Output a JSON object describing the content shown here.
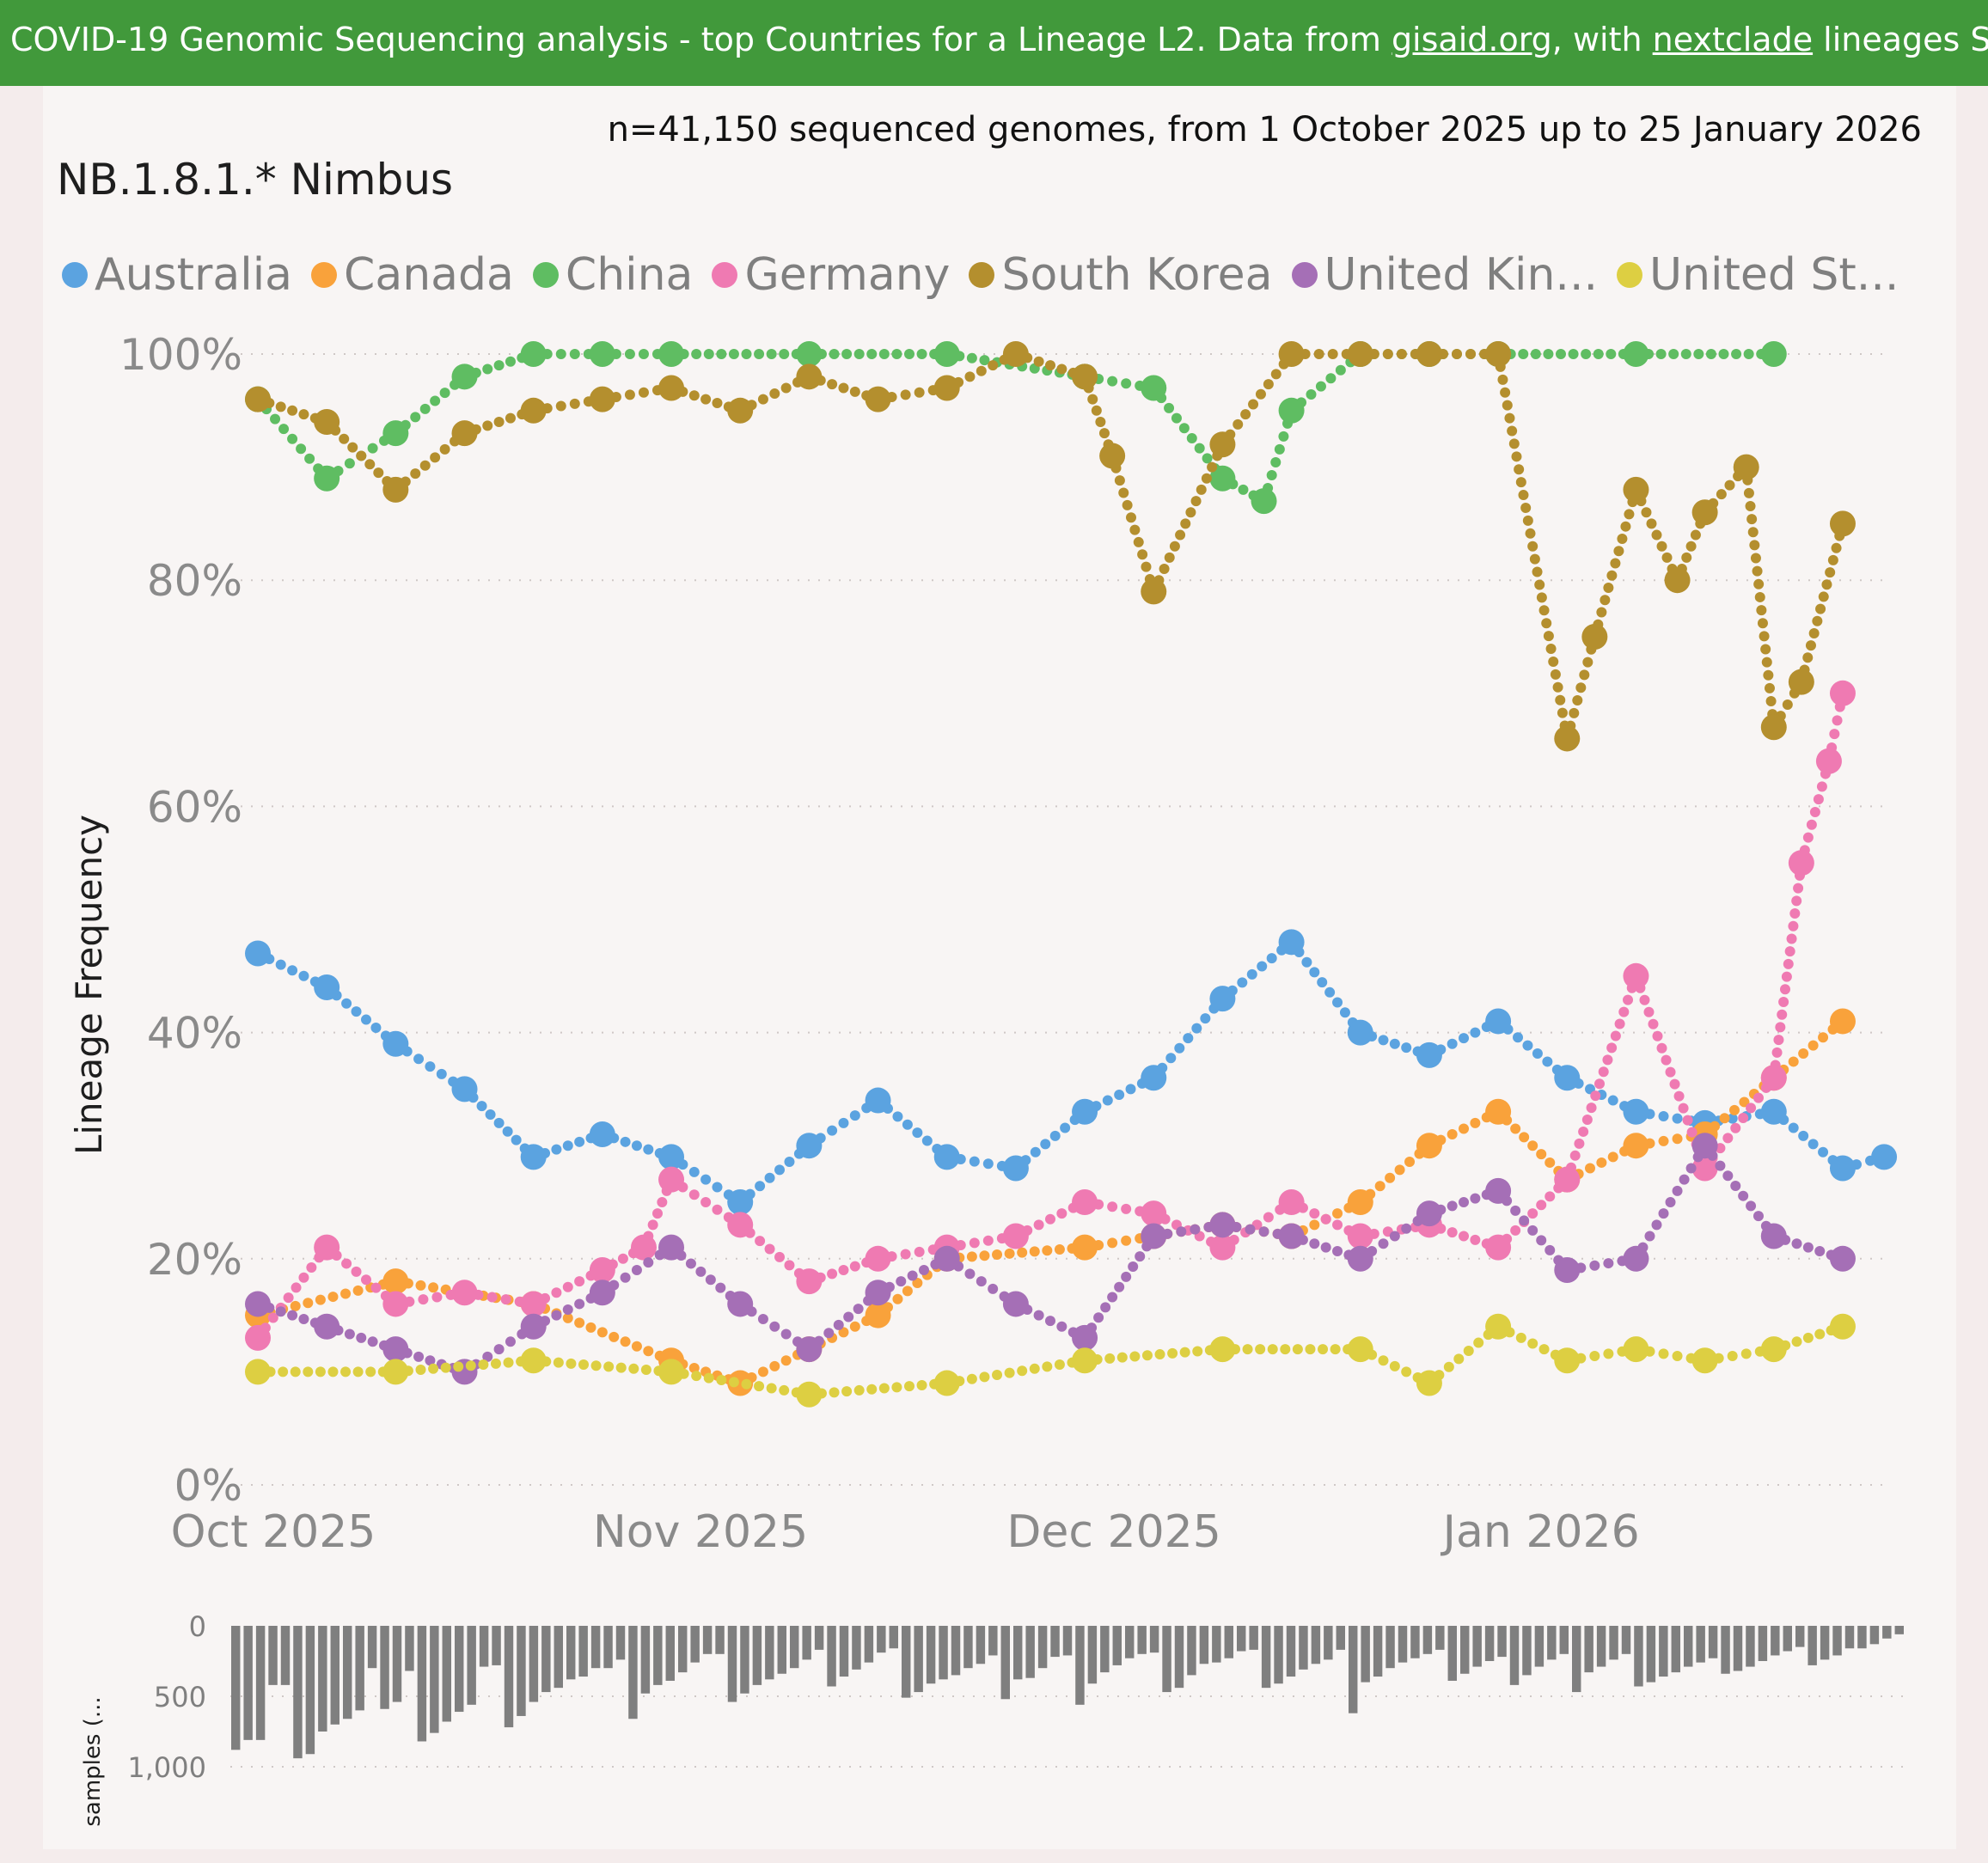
{
  "header": {
    "prefix": "COVID-19 Genomic Sequencing analysis - top Countries for a Lineage L2. Data from ",
    "link1": "gisaid.org",
    "middle": ", with ",
    "link2": "nextclade",
    "suffix": " lineages Source"
  },
  "subtitle": "n=41,150 sequenced genomes, from 1 October 2025 up to 25 January 2026",
  "colors": {
    "header_bg": "#41993b",
    "Australia": "#5ba3e0",
    "Canada": "#f9a23b",
    "China": "#5fbd62",
    "Germany": "#ef7ab2",
    "South Korea": "#b48f2e",
    "United Kingdom": "#a56fb6",
    "United States": "#ddcf42"
  },
  "chart_data": [
    {
      "type": "line",
      "title": "NB.1.8.1.* Nimbus",
      "xlabel": "",
      "ylabel": "Lineage Frequency",
      "x_range": [
        "2025-10-01",
        "2026-01-25"
      ],
      "ylim": [
        0,
        100
      ],
      "y_ticks": [
        "0%",
        "20%",
        "40%",
        "60%",
        "80%",
        "100%"
      ],
      "x_ticks": [
        "Oct 2025",
        "Nov 2025",
        "Dec 2025",
        "Jan 2026"
      ],
      "legend": [
        "Australia",
        "Canada",
        "China",
        "Germany",
        "South Korea",
        "United Kin...",
        "United St..."
      ],
      "series": [
        {
          "name": "Australia",
          "x_day": [
            0,
            5,
            10,
            15,
            20,
            25,
            30,
            35,
            40,
            45,
            50,
            55,
            60,
            65,
            70,
            75,
            80,
            85,
            90,
            95,
            100,
            105,
            110,
            115,
            118
          ],
          "values": [
            47,
            44,
            39,
            35,
            29,
            31,
            29,
            25,
            30,
            34,
            29,
            28,
            33,
            36,
            43,
            48,
            40,
            38,
            41,
            36,
            33,
            32,
            33,
            28,
            29
          ]
        },
        {
          "name": "Canada",
          "x_day": [
            0,
            10,
            20,
            30,
            35,
            40,
            45,
            50,
            60,
            65,
            70,
            75,
            80,
            85,
            90,
            95,
            100,
            105,
            110,
            115
          ],
          "values": [
            15,
            18,
            16,
            11,
            9,
            12,
            15,
            20,
            21,
            22,
            23,
            22,
            25,
            30,
            33,
            27,
            30,
            31,
            36,
            41
          ]
        },
        {
          "name": "China",
          "x_day": [
            0,
            5,
            10,
            15,
            20,
            25,
            30,
            40,
            50,
            60,
            65,
            70,
            73,
            75,
            80,
            85,
            90,
            100,
            110
          ],
          "values": [
            96,
            89,
            93,
            98,
            100,
            100,
            100,
            100,
            100,
            98,
            97,
            89,
            87,
            95,
            100,
            100,
            100,
            100,
            100
          ]
        },
        {
          "name": "Germany",
          "x_day": [
            0,
            5,
            10,
            15,
            20,
            25,
            28,
            30,
            35,
            40,
            45,
            50,
            55,
            60,
            65,
            70,
            75,
            80,
            85,
            90,
            95,
            100,
            105,
            110,
            112,
            114,
            115
          ],
          "values": [
            13,
            21,
            16,
            17,
            16,
            19,
            21,
            27,
            23,
            18,
            20,
            21,
            22,
            25,
            24,
            21,
            25,
            22,
            23,
            21,
            27,
            45,
            28,
            36,
            55,
            64,
            70
          ]
        },
        {
          "name": "South Korea",
          "x_day": [
            0,
            5,
            10,
            15,
            20,
            25,
            30,
            35,
            40,
            45,
            50,
            55,
            60,
            62,
            65,
            70,
            75,
            80,
            85,
            90,
            95,
            97,
            100,
            103,
            105,
            108,
            110,
            112,
            115
          ],
          "values": [
            96,
            94,
            88,
            93,
            95,
            96,
            97,
            95,
            98,
            96,
            97,
            100,
            98,
            91,
            79,
            92,
            100,
            100,
            100,
            100,
            66,
            75,
            88,
            80,
            86,
            90,
            67,
            71,
            85
          ]
        },
        {
          "name": "United Kingdom",
          "x_day": [
            0,
            5,
            10,
            15,
            20,
            25,
            30,
            35,
            40,
            45,
            50,
            55,
            60,
            65,
            70,
            75,
            80,
            85,
            90,
            95,
            100,
            105,
            110,
            115
          ],
          "values": [
            16,
            14,
            12,
            10,
            14,
            17,
            21,
            16,
            12,
            17,
            20,
            16,
            13,
            22,
            23,
            22,
            20,
            24,
            26,
            19,
            20,
            30,
            22,
            20
          ]
        },
        {
          "name": "United States",
          "x_day": [
            0,
            10,
            20,
            30,
            40,
            50,
            60,
            70,
            80,
            85,
            90,
            95,
            100,
            105,
            110,
            115
          ],
          "values": [
            10,
            10,
            11,
            10,
            8,
            9,
            11,
            12,
            12,
            9,
            14,
            11,
            12,
            11,
            12,
            14
          ]
        }
      ]
    },
    {
      "type": "bar",
      "title": "samples (...",
      "ylabel": "samples (...",
      "y_ticks": [
        "0",
        "500",
        "1,000"
      ],
      "ylim": [
        0,
        1000
      ],
      "values": [
        880,
        810,
        810,
        420,
        420,
        940,
        910,
        750,
        700,
        660,
        600,
        300,
        590,
        540,
        320,
        820,
        760,
        680,
        610,
        560,
        290,
        280,
        720,
        640,
        540,
        470,
        440,
        380,
        360,
        300,
        300,
        240,
        660,
        480,
        420,
        390,
        330,
        260,
        200,
        200,
        540,
        480,
        420,
        380,
        340,
        300,
        240,
        170,
        430,
        360,
        310,
        260,
        190,
        160,
        510,
        470,
        410,
        380,
        350,
        300,
        270,
        210,
        520,
        380,
        370,
        300,
        220,
        210,
        560,
        410,
        330,
        280,
        230,
        200,
        190,
        470,
        440,
        350,
        270,
        260,
        230,
        180,
        170,
        440,
        410,
        360,
        310,
        270,
        240,
        170,
        620,
        400,
        360,
        300,
        260,
        230,
        200,
        170,
        390,
        340,
        290,
        250,
        220,
        420,
        350,
        290,
        240,
        200,
        470,
        330,
        290,
        240,
        200,
        430,
        400,
        360,
        330,
        290,
        260,
        230,
        340,
        320,
        290,
        250,
        210,
        180,
        150,
        280,
        240,
        210,
        160,
        160,
        130,
        90,
        60
      ]
    }
  ]
}
